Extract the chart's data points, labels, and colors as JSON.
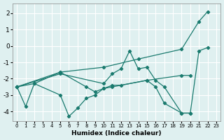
{
  "xlabel": "Humidex (Indice chaleur)",
  "xlim": [
    -0.5,
    23.5
  ],
  "ylim": [
    -4.6,
    2.6
  ],
  "yticks": [
    -4,
    -3,
    -2,
    -1,
    0,
    1,
    2
  ],
  "xticks": [
    0,
    1,
    2,
    3,
    4,
    5,
    6,
    7,
    8,
    9,
    10,
    11,
    12,
    13,
    14,
    15,
    16,
    17,
    18,
    19,
    20,
    21,
    22,
    23
  ],
  "bg_color": "#dff0f0",
  "grid_color": "#ffffff",
  "line_color": "#1a7a6e",
  "lines": [
    {
      "x": [
        0,
        5,
        10,
        14,
        19,
        21,
        22
      ],
      "y": [
        -2.5,
        -1.6,
        -1.3,
        -0.8,
        -0.2,
        1.5,
        2.1
      ]
    },
    {
      "x": [
        0,
        5,
        10,
        11,
        12,
        13,
        14,
        15,
        16,
        17,
        19,
        20,
        21,
        22
      ],
      "y": [
        -2.5,
        -1.7,
        -2.3,
        -1.7,
        -1.4,
        -0.3,
        -1.4,
        -1.3,
        -2.1,
        -2.5,
        -4.1,
        -4.1,
        -0.3,
        -0.1
      ]
    },
    {
      "x": [
        0,
        1,
        2,
        5,
        6,
        7,
        8,
        9,
        10,
        11,
        15,
        16,
        17,
        19,
        20
      ],
      "y": [
        -2.5,
        -3.7,
        -2.3,
        -3.0,
        -4.3,
        -3.8,
        -3.2,
        -3.0,
        -2.6,
        -2.5,
        -2.1,
        -2.5,
        -3.5,
        -4.1,
        -4.1
      ]
    },
    {
      "x": [
        0,
        2,
        5,
        8,
        9,
        10,
        11,
        12,
        15,
        19,
        20
      ],
      "y": [
        -2.5,
        -2.3,
        -1.6,
        -2.5,
        -2.8,
        -2.6,
        -2.4,
        -2.4,
        -2.1,
        -1.8,
        -1.8
      ]
    }
  ]
}
